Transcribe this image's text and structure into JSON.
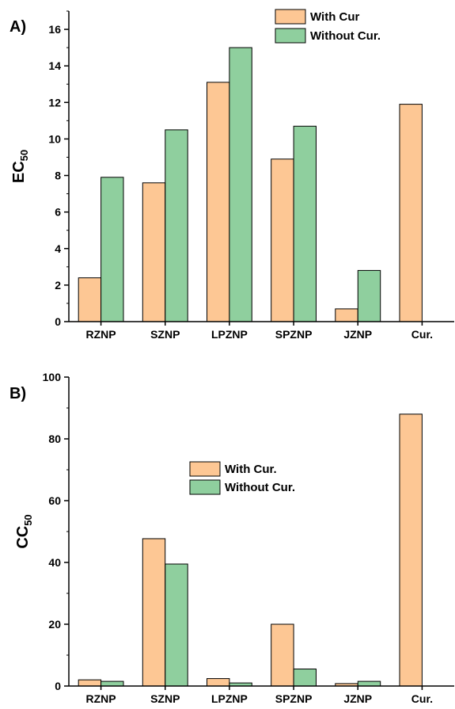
{
  "colors": {
    "with": "#fdc794",
    "without": "#8fcf9e",
    "stroke": "#000000"
  },
  "chart_data": [
    {
      "panel_label": "A)",
      "type": "bar",
      "categories": [
        "RZNP",
        "SZNP",
        "LPZNP",
        "SPZNP",
        "JZNP",
        "Cur."
      ],
      "series": [
        {
          "name": "With Cur",
          "values": [
            2.4,
            7.6,
            13.1,
            8.9,
            0.7,
            11.9
          ]
        },
        {
          "name": "Without Cur.",
          "values": [
            7.9,
            10.5,
            15.0,
            10.7,
            2.8,
            null
          ]
        }
      ],
      "ylabel": "EC",
      "ylabel_sub": "50",
      "ylim": [
        0,
        17
      ],
      "yticks": [
        0,
        2,
        4,
        6,
        8,
        10,
        12,
        14,
        16
      ],
      "legend_position": "top-right",
      "grid": false
    },
    {
      "panel_label": "B)",
      "type": "bar",
      "categories": [
        "RZNP",
        "SZNP",
        "LPZNP",
        "SPZNP",
        "JZNP",
        "Cur."
      ],
      "series": [
        {
          "name": "With Cur.",
          "values": [
            2.0,
            47.7,
            2.4,
            20.0,
            0.8,
            88.0
          ]
        },
        {
          "name": "Without Cur.",
          "values": [
            1.5,
            39.5,
            1.0,
            5.5,
            1.5,
            null
          ]
        }
      ],
      "ylabel": "CC",
      "ylabel_sub": "50",
      "ylim": [
        0,
        100
      ],
      "yticks": [
        0,
        20,
        40,
        60,
        80,
        100
      ],
      "legend_position": "center",
      "grid": false
    }
  ]
}
